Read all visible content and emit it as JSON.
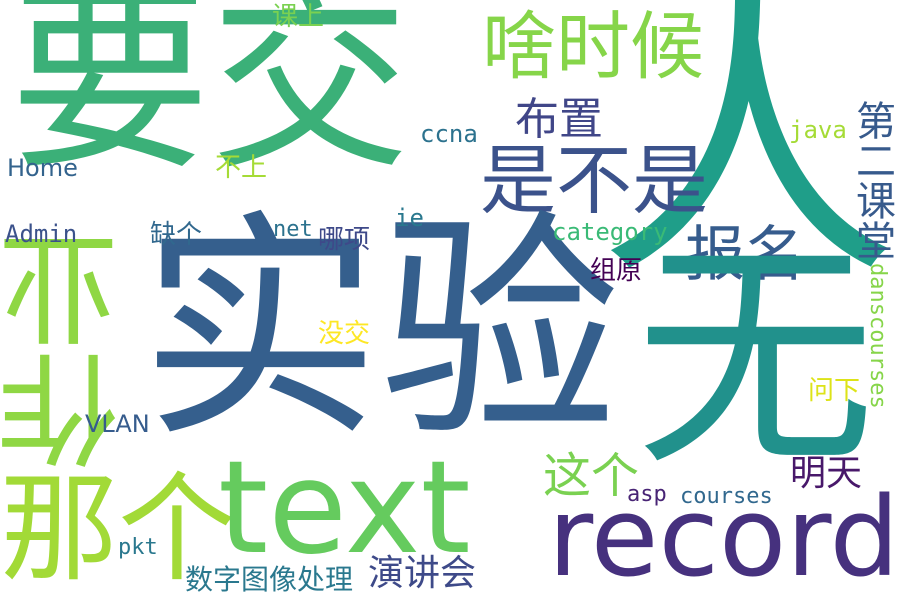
{
  "palette": {
    "yellow": "#fde725",
    "lightgreen": "#a0da39",
    "green": "#4ac16d",
    "teal": "#1fa187",
    "blue": "#277f8e",
    "slate": "#365c8d",
    "indigo": "#46327e",
    "purple": "#440154"
  },
  "words": {
    "yaojiao": "要交",
    "shenme_shihou": "啥时候",
    "ren": "人",
    "buzhi": "布置",
    "shi_bu_shi": "是不是",
    "baoming": "报名",
    "di_er_ketang": "第二课堂",
    "shiyan": "实验",
    "zuoye": "作业",
    "wu": "无",
    "nage": "那个",
    "text": "text",
    "record": "record",
    "zhege": "这个",
    "mingtian": "明天",
    "yanjianghui": "演讲会",
    "shuzi_tuxiang": "数字图像处理",
    "ketang_shang": "课上",
    "ccna": "ccna",
    "java": "java",
    "home": "Home",
    "bushang": "不上",
    "admin": "Admin",
    "quege": "缺个",
    "net": "net",
    "naxiang": "哪项",
    "ie": "ie",
    "category": "category",
    "zuyuan": "组原",
    "meijiao": "没交",
    "danscourses": "danscourses",
    "wenxia": "问下",
    "vlan": "VLAN",
    "asp": "asp",
    "courses": "courses",
    "pkt": "pkt"
  }
}
